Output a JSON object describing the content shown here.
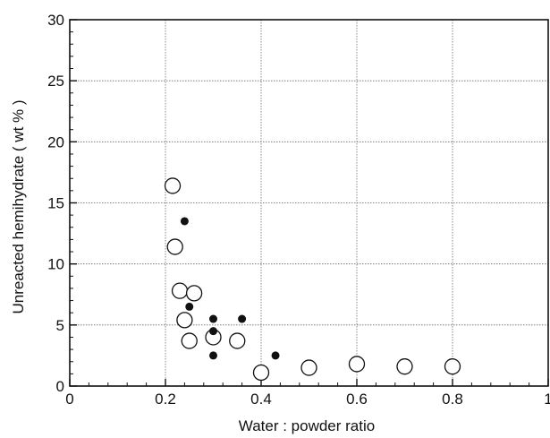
{
  "chart_data": {
    "type": "scatter",
    "title": "",
    "xlabel": "Water : powder ratio",
    "ylabel": "Unreacted hemihydrate ( wt % )",
    "xlim": [
      0,
      1
    ],
    "ylim": [
      0,
      30
    ],
    "x_ticks": [
      {
        "value": 0,
        "label": "0"
      },
      {
        "value": 0.2,
        "label": "0.2"
      },
      {
        "value": 0.4,
        "label": "0.4"
      },
      {
        "value": 0.6,
        "label": "0.6"
      },
      {
        "value": 0.8,
        "label": "0.8"
      },
      {
        "value": 1,
        "label": "1"
      }
    ],
    "y_ticks": [
      {
        "value": 0,
        "label": "0"
      },
      {
        "value": 5,
        "label": "5"
      },
      {
        "value": 10,
        "label": "10"
      },
      {
        "value": 15,
        "label": "15"
      },
      {
        "value": 20,
        "label": "20"
      },
      {
        "value": 25,
        "label": "25"
      },
      {
        "value": 30,
        "label": "30"
      }
    ],
    "grid": true,
    "series": [
      {
        "marker": "open-circle",
        "color": "#111111",
        "points": [
          {
            "x": 0.215,
            "y": 16.4
          },
          {
            "x": 0.22,
            "y": 11.4
          },
          {
            "x": 0.23,
            "y": 7.8
          },
          {
            "x": 0.26,
            "y": 7.6
          },
          {
            "x": 0.24,
            "y": 5.4
          },
          {
            "x": 0.25,
            "y": 3.7
          },
          {
            "x": 0.3,
            "y": 4.0
          },
          {
            "x": 0.35,
            "y": 3.7
          },
          {
            "x": 0.4,
            "y": 1.1
          },
          {
            "x": 0.5,
            "y": 1.5
          },
          {
            "x": 0.6,
            "y": 1.8
          },
          {
            "x": 0.7,
            "y": 1.6
          },
          {
            "x": 0.8,
            "y": 1.6
          }
        ]
      },
      {
        "marker": "filled-circle",
        "color": "#111111",
        "points": [
          {
            "x": 0.24,
            "y": 13.5
          },
          {
            "x": 0.25,
            "y": 6.5
          },
          {
            "x": 0.3,
            "y": 5.5
          },
          {
            "x": 0.3,
            "y": 4.5
          },
          {
            "x": 0.3,
            "y": 2.5
          },
          {
            "x": 0.36,
            "y": 5.5
          },
          {
            "x": 0.43,
            "y": 2.5
          }
        ]
      }
    ]
  }
}
